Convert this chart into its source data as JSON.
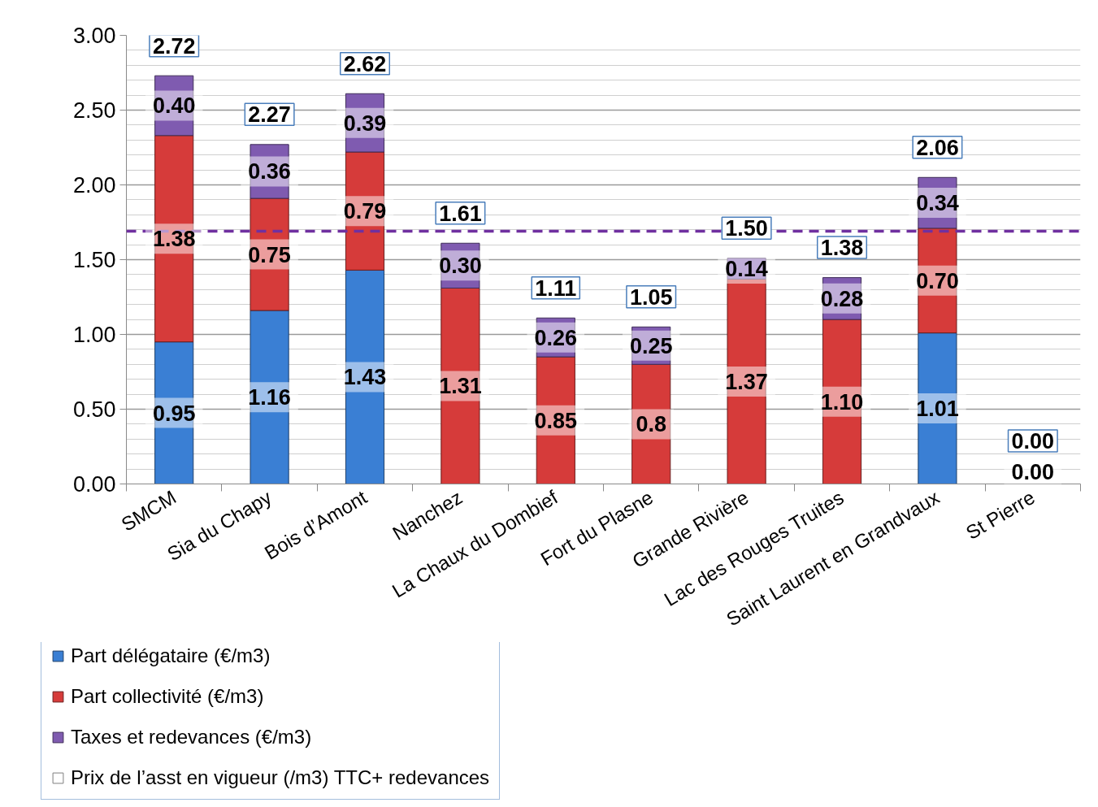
{
  "chart_data": {
    "type": "bar",
    "stacked": true,
    "categories": [
      "SMCM",
      "Sia du Chapy",
      "Bois d’Amont",
      "Nanchez",
      "La Chaux du Dombief",
      "Fort du Plasne",
      "Grande Rivière",
      "Lac des Rouges Truites",
      "Saint Laurent en Grandvaux",
      "St Pierre"
    ],
    "series": [
      {
        "name": "Part délégataire (€/m3)",
        "color": "#3a7fd4",
        "values": [
          0.95,
          1.16,
          1.43,
          null,
          null,
          null,
          null,
          null,
          1.01,
          0
        ],
        "value_labels": [
          "0.95",
          "1.16",
          "1.43",
          null,
          null,
          null,
          null,
          null,
          "1.01",
          "0.00"
        ]
      },
      {
        "name": "Part collectivité (€/m3)",
        "color": "#d63b3a",
        "values": [
          1.38,
          0.75,
          0.79,
          1.31,
          0.85,
          0.8,
          1.37,
          1.1,
          0.7,
          null
        ],
        "value_labels": [
          "1.38",
          "0.75",
          "0.79",
          "1.31",
          "0.85",
          "0.8",
          "1.37",
          "1.10",
          "0.70",
          null
        ]
      },
      {
        "name": "Taxes et redevances (€/m3)",
        "color": "#7f5bb0",
        "values": [
          0.4,
          0.36,
          0.39,
          0.3,
          0.26,
          0.25,
          0.14,
          0.28,
          0.34,
          null
        ],
        "value_labels": [
          "0.40",
          "0.36",
          "0.39",
          "0.30",
          "0.26",
          "0.25",
          "0.14",
          "0.28",
          "0.34",
          null
        ]
      },
      {
        "name": "Prix de l’asst en vigueur (/m3) TTC+ redevances",
        "color": "#ffffff",
        "values": [
          null,
          null,
          null,
          null,
          null,
          null,
          null,
          null,
          null,
          null
        ]
      }
    ],
    "totals": [
      "2.72",
      "2.27",
      "2.62",
      "1.61",
      "1.11",
      "1.05",
      "1.50",
      "1.38",
      "2.06",
      "0.00"
    ],
    "ylim": [
      0,
      3
    ],
    "yticks": [
      {
        "value": 0,
        "label": "0.00"
      },
      {
        "value": 0.5,
        "label": "0.50"
      },
      {
        "value": 1,
        "label": "1.00"
      },
      {
        "value": 1.5,
        "label": "1.50"
      },
      {
        "value": 2,
        "label": "2.00"
      },
      {
        "value": 2.5,
        "label": "2.50"
      },
      {
        "value": 3,
        "label": "3.00"
      }
    ],
    "grid": "y",
    "legend": "bottom left",
    "ref_lines": [
      {
        "axis": "y",
        "value": 1.69,
        "color": "#7030a0",
        "line_style": "dashed"
      }
    ]
  }
}
